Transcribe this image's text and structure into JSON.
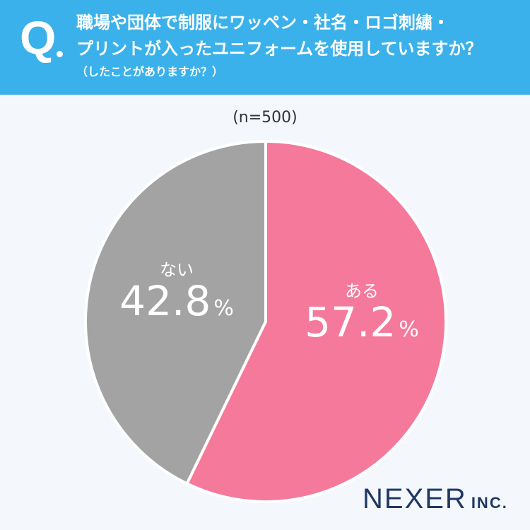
{
  "header": {
    "q_mark": "Q",
    "question_lines": [
      "職場や団体で制服にワッペン・社名・ロゴ刺繍・",
      "プリントが入ったユニフォームを使用していますか？"
    ],
    "note": "（したことがありますか？）"
  },
  "sample_size": "(n=500)",
  "brand": {
    "name": "NEXER",
    "suffix": "INC."
  },
  "chart_data": {
    "type": "pie",
    "title": "",
    "start": "12 o'clock, clockwise",
    "slices": [
      {
        "label": "ある",
        "value": 57.2,
        "display": "57.2",
        "unit": "%",
        "color": "#f5799a"
      },
      {
        "label": "ない",
        "value": 42.8,
        "display": "42.8",
        "unit": "%",
        "color": "#a3a3a3"
      }
    ],
    "separator_color": "#ffffff"
  }
}
